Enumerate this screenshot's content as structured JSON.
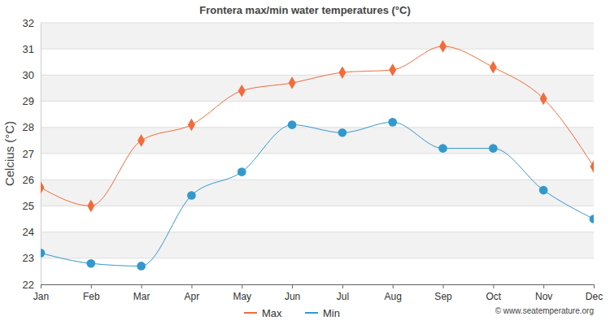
{
  "chart_data": {
    "type": "line",
    "title": "Frontera max/min water temperatures (°C)",
    "y_label": "Celcius (°C)",
    "annotations": [
      "© www.seatemperature.org"
    ],
    "categories": [
      "Jan",
      "Feb",
      "Mar",
      "Apr",
      "May",
      "Jun",
      "Jul",
      "Aug",
      "Sep",
      "Oct",
      "Nov",
      "Dec"
    ],
    "series": [
      {
        "name": "Max",
        "color": "#f26b3a",
        "marker": "diamond",
        "line_style": "solid",
        "values": [
          25.7,
          25.0,
          27.5,
          28.1,
          29.4,
          29.7,
          30.1,
          30.2,
          31.1,
          30.3,
          29.1,
          26.5
        ]
      },
      {
        "name": "Min",
        "color": "#3399cc",
        "marker": "circle",
        "line_style": "solid",
        "values": [
          23.2,
          22.8,
          22.7,
          25.4,
          26.3,
          28.1,
          27.8,
          28.2,
          27.2,
          27.2,
          25.6,
          24.5
        ]
      }
    ],
    "ylim": [
      22,
      32
    ],
    "yticks": [
      22,
      23,
      24,
      25,
      26,
      27,
      28,
      29,
      30,
      31,
      32
    ],
    "grid": true,
    "legend": "bottom"
  }
}
